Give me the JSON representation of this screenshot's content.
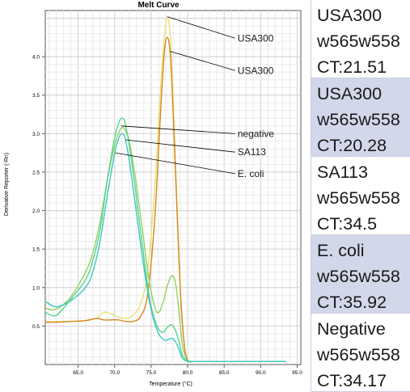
{
  "chart_data": {
    "type": "line",
    "title": "Melt Curve",
    "xlabel": "Temperature (°C)",
    "ylabel": "Derivative Reporter (-Rn)",
    "xlim": [
      60.5,
      95.5
    ],
    "ylim": [
      0.0,
      4.6
    ],
    "xticks": [
      65.0,
      70.0,
      75.0,
      80.0,
      85.0,
      90.0,
      95.0
    ],
    "xtick_labels": [
      "65.0",
      "70.0",
      "75.0",
      "80.0",
      "85.0",
      "90.0",
      "95.0"
    ],
    "yticks": [
      0.5,
      1.0,
      1.5,
      2.0,
      2.5,
      3.0,
      3.5,
      4.0
    ],
    "ytick_labels": [
      "0.5",
      "1.0",
      "1.5",
      "2.0",
      "2.5",
      "3.0",
      "3.5",
      "4.0"
    ],
    "grid": true,
    "series": [
      {
        "color": "#e8e070",
        "x": [
          60.5,
          62,
          64,
          66,
          67.5,
          68.5,
          69.5,
          70.5,
          71.5,
          72.5,
          73.5,
          74.5,
          75.5,
          76.3,
          76.8,
          77.2,
          77.6,
          78,
          78.5,
          79,
          79.5,
          80,
          81,
          85,
          93.5
        ],
        "y": [
          0.55,
          0.56,
          0.56,
          0.57,
          0.6,
          0.68,
          0.66,
          0.62,
          0.6,
          0.64,
          0.78,
          1.2,
          2.3,
          3.6,
          4.25,
          4.5,
          4.3,
          3.5,
          2.2,
          1.0,
          0.3,
          0.06,
          0.04,
          0.04,
          0.04
        ]
      },
      {
        "color": "#d6871e",
        "x": [
          60.5,
          62,
          64,
          66,
          67.5,
          68.5,
          69.5,
          70.5,
          71.5,
          72.5,
          73.5,
          74.5,
          75.5,
          76.3,
          76.8,
          77.2,
          77.6,
          78,
          78.5,
          79,
          79.5,
          80,
          81,
          85,
          93.5
        ],
        "y": [
          0.55,
          0.55,
          0.56,
          0.57,
          0.6,
          0.58,
          0.58,
          0.58,
          0.56,
          0.56,
          0.62,
          0.9,
          1.9,
          3.3,
          4.05,
          4.25,
          4.05,
          3.3,
          2.1,
          0.95,
          0.3,
          0.06,
          0.04,
          0.04,
          0.04
        ]
      },
      {
        "color": "#90d260",
        "x": [
          60.5,
          62,
          64,
          66,
          67,
          68,
          69,
          70,
          70.6,
          71,
          71.4,
          72,
          72.8,
          73.8,
          74.8,
          75.8,
          76.6,
          77.2,
          77.8,
          78.3,
          78.8,
          79.3,
          80,
          81,
          85,
          93.5
        ],
        "y": [
          0.73,
          0.72,
          0.88,
          1.2,
          1.45,
          1.85,
          2.4,
          2.85,
          3.02,
          3.08,
          3.05,
          2.9,
          2.45,
          1.75,
          1.05,
          0.68,
          0.8,
          1.02,
          1.15,
          1.08,
          0.7,
          0.25,
          0.05,
          0.04,
          0.04,
          0.04
        ]
      },
      {
        "color": "#56d48c",
        "x": [
          60.5,
          62,
          64,
          66,
          67,
          68,
          69,
          70,
          70.6,
          71,
          71.4,
          72,
          72.8,
          73.8,
          74.8,
          75.8,
          76.6,
          77.2,
          77.8,
          78.3,
          78.8,
          79.3,
          80,
          81,
          85,
          93.5
        ],
        "y": [
          0.68,
          0.64,
          0.85,
          1.1,
          1.35,
          1.75,
          2.4,
          2.95,
          3.15,
          3.2,
          3.15,
          2.85,
          2.3,
          1.55,
          0.85,
          0.5,
          0.42,
          0.48,
          0.52,
          0.45,
          0.3,
          0.12,
          0.05,
          0.04,
          0.04,
          0.04
        ]
      },
      {
        "color": "#3cc7c0",
        "x": [
          60.5,
          62,
          64,
          66,
          67,
          68,
          69,
          70,
          70.6,
          71,
          71.4,
          72,
          72.8,
          73.8,
          74.8,
          75.8,
          76.6,
          77.2,
          77.8,
          78.3,
          78.8,
          79.3,
          80,
          81,
          85,
          93.5
        ],
        "y": [
          0.82,
          0.75,
          0.83,
          1.0,
          1.2,
          1.6,
          2.2,
          2.75,
          2.95,
          3.0,
          2.95,
          2.65,
          2.1,
          1.4,
          0.8,
          0.45,
          0.33,
          0.32,
          0.34,
          0.3,
          0.2,
          0.08,
          0.04,
          0.04,
          0.04,
          0.04
        ]
      }
    ],
    "annotations": [
      {
        "text": "USA300",
        "tip": [
          77.2,
          4.52
        ],
        "anchor": [
          86.5,
          4.24
        ]
      },
      {
        "text": "USA300",
        "tip": [
          77.6,
          4.07
        ],
        "anchor": [
          86.5,
          3.82
        ]
      },
      {
        "text": "negative",
        "tip": [
          70.9,
          3.1
        ],
        "anchor": [
          86.5,
          3.0
        ]
      },
      {
        "text": "SA113",
        "tip": [
          71.5,
          2.92
        ],
        "anchor": [
          86.5,
          2.76
        ]
      },
      {
        "text": "E. coli",
        "tip": [
          70.1,
          2.75
        ],
        "anchor": [
          86.5,
          2.48
        ]
      }
    ]
  },
  "legend": [
    {
      "name": "USA300",
      "primer": "w565w558",
      "ct": "CT:21.51"
    },
    {
      "name": "USA300",
      "primer": "w565w558",
      "ct": "CT:20.28"
    },
    {
      "name": "SA113",
      "primer": "w565w558",
      "ct": "CT:34.5"
    },
    {
      "name": "E. coli",
      "primer": "w565w558",
      "ct": "CT:35.92"
    },
    {
      "name": "Negative",
      "primer": "w565w558",
      "ct": "CT:34.17"
    }
  ]
}
